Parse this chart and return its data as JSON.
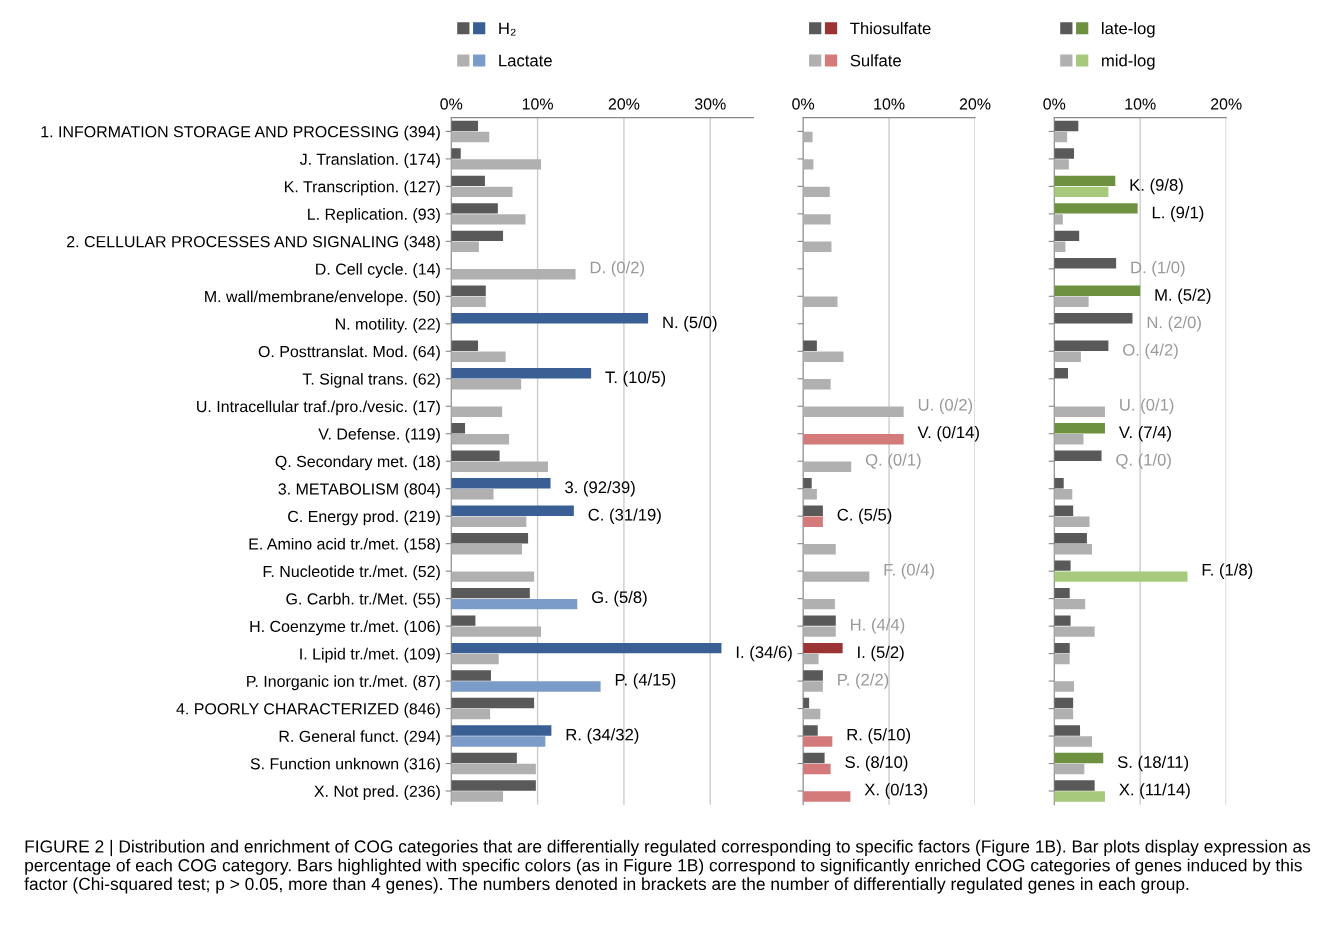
{
  "chart_data": [
    {
      "type": "bar",
      "orientation": "horizontal",
      "categories": [
        "1. INFORMATION STORAGE AND PROCESSING (394)",
        "J. Translation. (174)",
        "K. Transcription. (127)",
        "L. Replication. (93)",
        "2. CELLULAR PROCESSES AND SIGNALING (348)",
        "D. Cell cycle. (14)",
        "M. wall/membrane/envelope. (50)",
        "N. motility. (22)",
        "O. Posttranslat. Mod. (64)",
        "T. Signal trans. (62)",
        "U. Intracellular traf./pro./vesic. (17)",
        "V. Defense. (119)",
        "Q. Secondary met. (18)",
        "3. METABOLISM (804)",
        "C. Energy prod. (219)",
        "E. Amino acid tr./met. (158)",
        "F. Nucleotide tr./met. (52)",
        "G. Carbh. tr./Met. (55)",
        "H. Coenzyme tr./met. (106)",
        "I. Lipid tr./met. (109)",
        "P. Inorganic ion tr./met. (87)",
        "4. POORLY CHARACTERIZED (846)",
        "R. General funct. (294)",
        "S. Function unknown (316)",
        "X. Not pred. (236)"
      ],
      "series": [
        {
          "name": "H₂",
          "color": "#595959",
          "values": [
            3.1,
            1.1,
            3.9,
            5.4,
            6.0,
            0,
            4.0,
            22.8,
            3.1,
            16.2,
            0,
            1.6,
            5.6,
            11.5,
            14.2,
            8.9,
            0,
            9.1,
            2.8,
            31.3,
            4.6,
            9.6,
            11.6,
            7.6,
            9.8
          ],
          "colors": [
            "#595959",
            "#595959",
            "#595959",
            "#595959",
            "#595959",
            "#595959",
            "#595959",
            "#3a5f94",
            "#595959",
            "#3a5f94",
            "#595959",
            "#595959",
            "#595959",
            "#3a5f94",
            "#3a5f94",
            "#595959",
            "#595959",
            "#595959",
            "#595959",
            "#3a5f94",
            "#595959",
            "#595959",
            "#3a5f94",
            "#595959",
            "#595959"
          ]
        },
        {
          "name": "Lactate",
          "color": "#b0b0b0",
          "values": [
            4.4,
            10.4,
            7.1,
            8.6,
            3.2,
            14.4,
            4.0,
            0,
            6.3,
            8.1,
            5.9,
            6.7,
            11.2,
            4.9,
            8.7,
            8.2,
            9.6,
            14.6,
            10.4,
            5.5,
            17.3,
            4.5,
            10.9,
            9.8,
            6.0
          ],
          "colors": [
            "#b0b0b0",
            "#b0b0b0",
            "#b0b0b0",
            "#b0b0b0",
            "#b0b0b0",
            "#b0b0b0",
            "#b0b0b0",
            "#b0b0b0",
            "#b0b0b0",
            "#b0b0b0",
            "#b0b0b0",
            "#b0b0b0",
            "#b0b0b0",
            "#b0b0b0",
            "#b0b0b0",
            "#b0b0b0",
            "#b0b0b0",
            "#7b9bc9",
            "#b0b0b0",
            "#b0b0b0",
            "#7b9bc9",
            "#b0b0b0",
            "#7b9bc9",
            "#b0b0b0",
            "#b0b0b0"
          ]
        }
      ],
      "xlim": [
        0,
        35
      ],
      "xticks": [
        {
          "value": 0,
          "label": "0%"
        },
        {
          "value": 10,
          "label": "10%"
        },
        {
          "value": 20,
          "label": "20%"
        },
        {
          "value": 30,
          "label": "30%"
        }
      ],
      "grid": "x",
      "legend": "top",
      "annotations": [
        {
          "text": "D. (0/2)",
          "x": 14.4,
          "y": "D. Cell cycle. (14)"
        },
        {
          "text": "N. (5/0)",
          "x": 22.8,
          "y": "N. motility. (22)"
        },
        {
          "text": "T. (10/5)",
          "x": 16.2,
          "y": "T. Signal trans. (62)"
        },
        {
          "text": "3. (92/39)",
          "x": 11.5,
          "y": "3. METABOLISM (804)"
        },
        {
          "text": "C. (31/19)",
          "x": 14.2,
          "y": "C. Energy prod. (219)"
        },
        {
          "text": "G. (5/8)",
          "x": 14.6,
          "y": "G. Carbh. tr./Met. (55)"
        },
        {
          "text": "I. (34/6)",
          "x": 31.3,
          "y": "I. Lipid tr./met. (109)"
        },
        {
          "text": "P. (4/15)",
          "x": 17.3,
          "y": "P. Inorganic ion tr./met. (87)"
        },
        {
          "text": "R. (34/32)",
          "x": 11.6,
          "y": "R. General funct. (294)"
        },
        "FIGURE 2 | Distribution and enrichment of COG categories that are differentially regulated corresponding to specific factors (Figure 1B). Bar plots display expression as percentage of each COG category. Bars highlighted with specific colors (as in Figure 1B) correspond to significantly enriched COG categories of genes induced by this factor (Chi-squared test; p > 0.05, more than 4 genes). The numbers denoted in brackets are the number of differentially regulated genes in each group."
      ]
    },
    {
      "type": "bar",
      "orientation": "horizontal",
      "tick_labels": "x",
      "categories": [
        "1. INFORMATION STORAGE AND PROCESSING (394)",
        "J. Translation. (174)",
        "K. Transcription. (127)",
        "L. Replication. (93)",
        "2. CELLULAR PROCESSES AND SIGNALING (348)",
        "D. Cell cycle. (14)",
        "M. wall/membrane/envelope. (50)",
        "N. motility. (22)",
        "O. Posttranslat. Mod. (64)",
        "T. Signal trans. (62)",
        "U. Intracellular traf./pro./vesic. (17)",
        "V. Defense. (119)",
        "Q. Secondary met. (18)",
        "3. METABOLISM (804)",
        "C. Energy prod. (219)",
        "E. Amino acid tr./met. (158)",
        "F. Nucleotide tr./met. (52)",
        "G. Carbh. tr./Met. (55)",
        "H. Coenzyme tr./met. (106)",
        "I. Lipid tr./met. (109)",
        "P. Inorganic ion tr./met. (87)",
        "4. POORLY CHARACTERIZED (846)",
        "R. General funct. (294)",
        "S. Function unknown (316)",
        "X. Not pred. (236)"
      ],
      "series": [
        {
          "name": "Thiosulfate",
          "color": "#595959",
          "values": [
            0,
            0,
            0,
            0,
            0,
            0,
            0,
            0,
            1.6,
            0,
            0,
            0,
            0,
            1.0,
            2.3,
            0,
            0,
            0,
            3.8,
            4.6,
            2.3,
            0.7,
            1.7,
            2.5,
            0
          ],
          "colors": [
            "#595959",
            "#595959",
            "#595959",
            "#595959",
            "#595959",
            "#595959",
            "#595959",
            "#595959",
            "#595959",
            "#595959",
            "#595959",
            "#595959",
            "#595959",
            "#595959",
            "#595959",
            "#595959",
            "#595959",
            "#595959",
            "#595959",
            "#9b3535",
            "#595959",
            "#595959",
            "#595959",
            "#595959",
            "#595959"
          ]
        },
        {
          "name": "Sulfate",
          "color": "#b0b0b0",
          "values": [
            1.1,
            1.2,
            3.1,
            3.2,
            3.3,
            0,
            4.0,
            0,
            4.7,
            3.2,
            11.7,
            11.7,
            5.6,
            1.6,
            2.3,
            3.8,
            7.7,
            3.7,
            3.8,
            1.8,
            2.3,
            2.0,
            3.4,
            3.2,
            5.5
          ],
          "colors": [
            "#b0b0b0",
            "#b0b0b0",
            "#b0b0b0",
            "#b0b0b0",
            "#b0b0b0",
            "#b0b0b0",
            "#b0b0b0",
            "#b0b0b0",
            "#b0b0b0",
            "#b0b0b0",
            "#b0b0b0",
            "#d47a7a",
            "#b0b0b0",
            "#b0b0b0",
            "#d47a7a",
            "#b0b0b0",
            "#b0b0b0",
            "#b0b0b0",
            "#b0b0b0",
            "#b0b0b0",
            "#b0b0b0",
            "#b0b0b0",
            "#d47a7a",
            "#d47a7a",
            "#d47a7a"
          ]
        }
      ],
      "xlim": [
        0,
        20
      ],
      "xticks": [
        {
          "value": 0,
          "label": "0%"
        },
        {
          "value": 10,
          "label": "10%"
        },
        {
          "value": 20,
          "label": "20%"
        }
      ],
      "grid": "x",
      "legend": "top",
      "annotations": [
        {
          "text": "U. (0/2)",
          "x": 11.7,
          "y": "U. Intracellular traf./pro./vesic. (17)"
        },
        {
          "text": "V. (0/14)",
          "x": 11.7,
          "y": "V. Defense. (119)"
        },
        {
          "text": "Q. (0/1)",
          "x": 5.6,
          "y": "Q. Secondary met. (18)"
        },
        {
          "text": "C. (5/5)",
          "x": 2.3,
          "y": "C. Energy prod. (219)"
        },
        {
          "text": "F. (0/4)",
          "x": 7.7,
          "y": "F. Nucleotide tr./met. (52)"
        },
        {
          "text": "H. (4/4)",
          "x": 3.8,
          "y": "H. Coenzyme tr./met. (106)"
        },
        {
          "text": "I. (5/2)",
          "x": 4.6,
          "y": "I. Lipid tr./met. (109)"
        },
        {
          "text": "P. (2/2)",
          "x": 2.3,
          "y": "P. Inorganic ion tr./met. (87)"
        },
        {
          "text": "R. (5/10)",
          "x": 3.4,
          "y": "R. General funct. (294)"
        },
        {
          "text": "S. (8/10)",
          "x": 3.2,
          "y": "S. Function unknown (316)"
        },
        {
          "text": "X. (0/13)",
          "x": 5.5,
          "y": "X. Not pred. (236)"
        }
      ]
    },
    {
      "type": "bar",
      "orientation": "horizontal",
      "tick_labels": "x",
      "categories": [
        "1. INFORMATION STORAGE AND PROCESSING (394)",
        "J. Translation. (174)",
        "K. Transcription. (127)",
        "L. Replication. (93)",
        "2. CELLULAR PROCESSES AND SIGNALING (348)",
        "D. Cell cycle. (14)",
        "M. wall/membrane/envelope. (50)",
        "N. motility. (22)",
        "O. Posttranslat. Mod. (64)",
        "T. Signal trans. (62)",
        "U. Intracellular traf./pro./vesic. (17)",
        "V. Defense. (119)",
        "Q. Secondary met. (18)",
        "3. METABOLISM (804)",
        "C. Energy prod. (219)",
        "E. Amino acid tr./met. (158)",
        "F. Nucleotide tr./met. (52)",
        "G. Carbh. tr./Met. (55)",
        "H. Coenzyme tr./met. (106)",
        "I. Lipid tr./met. (109)",
        "P. Inorganic ion tr./met. (87)",
        "4. POORLY CHARACTERIZED (846)",
        "R. General funct. (294)",
        "S. Function unknown (316)",
        "X. Not pred. (236)"
      ],
      "series": [
        {
          "name": "late-log",
          "color": "#595959",
          "values": [
            2.8,
            2.3,
            7.1,
            9.7,
            2.9,
            7.2,
            10.0,
            9.1,
            6.3,
            1.6,
            0,
            5.9,
            5.5,
            1.1,
            2.2,
            3.8,
            1.9,
            1.8,
            1.9,
            1.8,
            0,
            2.2,
            3.0,
            5.7,
            4.7
          ],
          "colors": [
            "#595959",
            "#595959",
            "#6e9140",
            "#6e9140",
            "#595959",
            "#595959",
            "#6e9140",
            "#595959",
            "#595959",
            "#595959",
            "#595959",
            "#6e9140",
            "#595959",
            "#595959",
            "#595959",
            "#595959",
            "#595959",
            "#595959",
            "#595959",
            "#595959",
            "#595959",
            "#595959",
            "#595959",
            "#6e9140",
            "#595959"
          ]
        },
        {
          "name": "mid-log",
          "color": "#b0b0b0",
          "values": [
            1.5,
            1.7,
            6.3,
            1.0,
            1.3,
            0,
            4.0,
            0,
            3.1,
            0,
            5.9,
            3.4,
            0,
            2.1,
            4.1,
            4.4,
            15.5,
            3.6,
            4.7,
            1.8,
            2.3,
            2.2,
            4.4,
            3.5,
            5.9
          ],
          "colors": [
            "#b0b0b0",
            "#b0b0b0",
            "#a6c97c",
            "#b0b0b0",
            "#b0b0b0",
            "#b0b0b0",
            "#b0b0b0",
            "#b0b0b0",
            "#b0b0b0",
            "#b0b0b0",
            "#b0b0b0",
            "#b0b0b0",
            "#b0b0b0",
            "#b0b0b0",
            "#b0b0b0",
            "#b0b0b0",
            "#a6c97c",
            "#b0b0b0",
            "#b0b0b0",
            "#b0b0b0",
            "#b0b0b0",
            "#b0b0b0",
            "#b0b0b0",
            "#b0b0b0",
            "#a6c97c"
          ]
        }
      ],
      "xlim": [
        0,
        20
      ],
      "xticks": [
        {
          "value": 0,
          "label": "0%"
        },
        {
          "value": 10,
          "label": "10%"
        },
        {
          "value": 20,
          "label": "20%"
        }
      ],
      "grid": "x",
      "legend": "top",
      "annotations": [
        {
          "text": "K. (9/8)",
          "x": 7.1,
          "y": "K. Transcription. (127)"
        },
        {
          "text": "L. (9/1)",
          "x": 9.7,
          "y": "L. Replication. (93)"
        },
        {
          "text": "D. (1/0)",
          "x": 7.2,
          "y": "D. Cell cycle. (14)"
        },
        {
          "text": "M. (5/2)",
          "x": 10.0,
          "y": "M. wall/membrane/envelope. (50)"
        },
        {
          "text": "N. (2/0)",
          "x": 9.1,
          "y": "N. motility. (22)"
        },
        {
          "text": "O. (4/2)",
          "x": 6.3,
          "y": "O. Posttranslat. Mod. (64)"
        },
        {
          "text": "U. (0/1)",
          "x": 5.9,
          "y": "U. Intracellular traf./pro./vesic. (17)"
        },
        {
          "text": "V. (7/4)",
          "x": 5.9,
          "y": "V. Defense. (119)"
        },
        {
          "text": "Q. (1/0)",
          "x": 5.5,
          "y": "Q. Secondary met. (18)"
        },
        {
          "text": "F. (1/8)",
          "x": 15.5,
          "y": "F. Nucleotide tr./met. (52)"
        },
        {
          "text": "S. (18/11)",
          "x": 5.7,
          "y": "S. Function unknown (316)"
        },
        {
          "text": "X. (11/14)",
          "x": 5.9,
          "y": "X. Not pred. (236)"
        }
      ]
    }
  ]
}
